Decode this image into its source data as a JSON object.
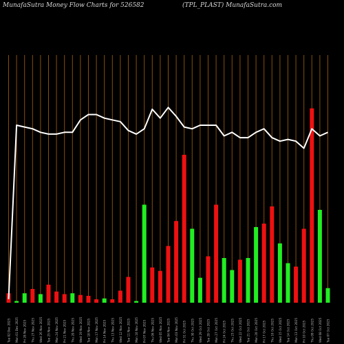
{
  "header": {
    "left": "MunafaSutra  Money Flow  Charts for 526582",
    "right": "(TPL_PLAST) MunafaSutra.com"
  },
  "colors": {
    "background": "#000000",
    "grid": "#8a4f0a",
    "up": "#22ee22",
    "down": "#ee1111",
    "line": "#ffffff",
    "label": "#bbbbbb"
  },
  "chart_data": {
    "type": "bar",
    "title": "MunafaSutra  Money Flow  Charts for 526582",
    "subtitle": "(TPL_PLAST) MunafaSutra.com",
    "grid": true,
    "value_range": [
      0,
      100
    ],
    "bars": [
      {
        "label": "Tue 02 Dec 2025",
        "value": 5.5,
        "dir": "down"
      },
      {
        "label": "Mon 01 Dec 2025",
        "value": 1,
        "dir": "up"
      },
      {
        "label": "Fri 28 Nov 2025",
        "value": 5.5,
        "dir": "up"
      },
      {
        "label": "Thu 27 Nov 2025",
        "value": 8,
        "dir": "down"
      },
      {
        "label": "Wed 26 Nov 2025",
        "value": 5,
        "dir": "up"
      },
      {
        "label": "Tue 25 Nov 2025",
        "value": 10.5,
        "dir": "down"
      },
      {
        "label": "Mon 24 Nov 2025",
        "value": 6.5,
        "dir": "down"
      },
      {
        "label": "Fri 21 Nov 2025",
        "value": 5,
        "dir": "down"
      },
      {
        "label": "Thu 20 Nov 2025",
        "value": 5.5,
        "dir": "up"
      },
      {
        "label": "Wed 19 Nov 2025",
        "value": 4.5,
        "dir": "down"
      },
      {
        "label": "Tue 18 Nov 2025",
        "value": 4,
        "dir": "down"
      },
      {
        "label": "Mon 17 Nov 2025",
        "value": 2,
        "dir": "down"
      },
      {
        "label": "Fri 14 Nov 2025",
        "value": 2.5,
        "dir": "up"
      },
      {
        "label": "Thu 13 Nov 2025",
        "value": 2,
        "dir": "down"
      },
      {
        "label": "Wed 12 Nov 2025",
        "value": 7,
        "dir": "down"
      },
      {
        "label": "Tue 11 Nov 2025",
        "value": 15,
        "dir": "down"
      },
      {
        "label": "Mon 10 Nov 2025",
        "value": 1,
        "dir": "up"
      },
      {
        "label": "Fri 07 Nov 2025",
        "value": 57,
        "dir": "up"
      },
      {
        "label": "Thu 06 Nov 2025",
        "value": 20.5,
        "dir": "down"
      },
      {
        "label": "Wed 05 Nov 2025",
        "value": 18.5,
        "dir": "down"
      },
      {
        "label": "Tue 04 Nov 2025",
        "value": 33,
        "dir": "down"
      },
      {
        "label": "Mon 03 Nov 2025",
        "value": 47.5,
        "dir": "down"
      },
      {
        "label": "Fri 31 Oct 2025",
        "value": 86,
        "dir": "down"
      },
      {
        "label": "Thu 30 Oct 2025",
        "value": 43,
        "dir": "up"
      },
      {
        "label": "Wed 29 Oct 2025",
        "value": 14.5,
        "dir": "up"
      },
      {
        "label": "Tue 28 Oct 2025",
        "value": 27,
        "dir": "down"
      },
      {
        "label": "Mon 27 Oct 2025",
        "value": 57,
        "dir": "down"
      },
      {
        "label": "Fri 24 Oct 2025",
        "value": 26,
        "dir": "up"
      },
      {
        "label": "Thu 23 Oct 2025",
        "value": 19,
        "dir": "up"
      },
      {
        "label": "Wed 22 Oct 2025",
        "value": 25,
        "dir": "down"
      },
      {
        "label": "Tue 21 Oct 2025",
        "value": 26,
        "dir": "up"
      },
      {
        "label": "Mon 20 Oct 2025",
        "value": 44,
        "dir": "up"
      },
      {
        "label": "Fri 17 Oct 2025",
        "value": 46,
        "dir": "down"
      },
      {
        "label": "Thu 16 Oct 2025",
        "value": 56,
        "dir": "down"
      },
      {
        "label": "Wed 15 Oct 2025",
        "value": 34.5,
        "dir": "up"
      },
      {
        "label": "Tue 14 Oct 2025",
        "value": 23,
        "dir": "up"
      },
      {
        "label": "Mon 13 Oct 2025",
        "value": 21,
        "dir": "down"
      },
      {
        "label": "Fri 10 Oct 2025",
        "value": 43,
        "dir": "down"
      },
      {
        "label": "Thu 09 Oct 2025",
        "value": 113,
        "dir": "down"
      },
      {
        "label": "Wed 08 Oct 2025",
        "value": 54,
        "dir": "up"
      },
      {
        "label": "Tue 07 Oct 2025",
        "value": 8.5,
        "dir": "up"
      }
    ],
    "price_line": [
      2,
      100,
      99,
      98,
      96,
      95,
      95,
      96,
      96,
      103,
      106,
      106,
      104,
      103,
      102,
      97,
      95,
      98,
      109,
      104,
      110,
      105,
      99,
      98,
      100,
      100,
      100,
      94,
      96,
      93,
      93,
      96,
      98,
      93,
      91,
      92,
      91,
      87,
      98,
      94,
      96
    ]
  }
}
